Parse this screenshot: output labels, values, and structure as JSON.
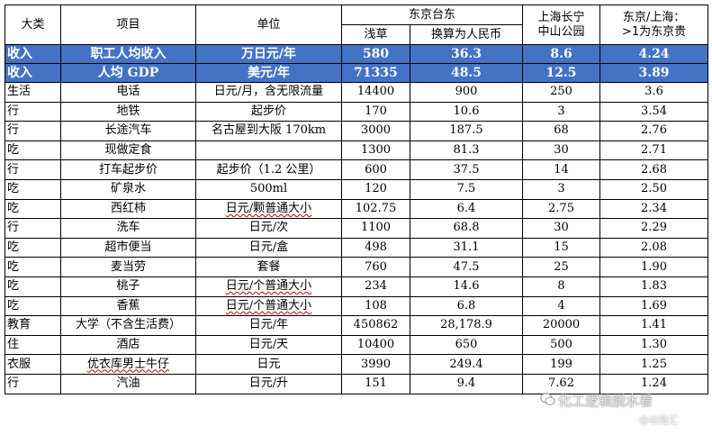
{
  "header": {
    "category": "大类",
    "item": "项目",
    "unit": "单位",
    "tokyo_group": "东京台东",
    "tokyo_asakusa": "浅草",
    "tokyo_rmb": "换算为人民币",
    "shanghai_line1": "上海长宁",
    "shanghai_line2": "中山公园",
    "ratio_line1": "东京/上海：",
    "ratio_line2": ">1为东京贵"
  },
  "income_rows": [
    {
      "cat": "收入",
      "item": "职工人均收入",
      "unit": "万日元/年",
      "tokyo": "580",
      "rmb": "36.3",
      "sh": "8.6",
      "ratio": "4.24"
    },
    {
      "cat": "收入",
      "item": "人均 GDP",
      "unit": "美元/年",
      "tokyo": "71335",
      "rmb": "48.5",
      "sh": "12.5",
      "ratio": "3.89"
    }
  ],
  "rows": [
    {
      "cat": "生活",
      "item": "电话",
      "unit": "日元/月，含无限流量",
      "tokyo": "14400",
      "rmb": "900",
      "sh": "250",
      "ratio": "3.6"
    },
    {
      "cat": "行",
      "item": "地铁",
      "unit": "起步价",
      "tokyo": "170",
      "rmb": "10.6",
      "sh": "3",
      "ratio": "3.54"
    },
    {
      "cat": "行",
      "item": "长途汽车",
      "unit": "名古屋到大阪 170km",
      "tokyo": "3000",
      "rmb": "187.5",
      "sh": "68",
      "ratio": "2.76"
    },
    {
      "cat": "吃",
      "item": "现做定食",
      "unit": "",
      "tokyo": "1300",
      "rmb": "81.3",
      "sh": "30",
      "ratio": "2.71"
    },
    {
      "cat": "行",
      "item": "打车起步价",
      "unit": "起步价（1.2 公里）",
      "tokyo": "600",
      "rmb": "37.5",
      "sh": "14",
      "ratio": "2.68"
    },
    {
      "cat": "吃",
      "item": "矿泉水",
      "unit": "500ml",
      "tokyo": "120",
      "rmb": "7.5",
      "sh": "3",
      "ratio": "2.50"
    },
    {
      "cat": "吃",
      "item": "西红柿",
      "unit": "日元/颗普通大小",
      "tokyo": "102.75",
      "rmb": "6.4",
      "sh": "2.75",
      "ratio": "2.34"
    },
    {
      "cat": "行",
      "item": "洗车",
      "unit": "日元/次",
      "tokyo": "1100",
      "rmb": "68.8",
      "sh": "30",
      "ratio": "2.29"
    },
    {
      "cat": "吃",
      "item": "超市便当",
      "unit": "日元/盒",
      "tokyo": "498",
      "rmb": "31.1",
      "sh": "15",
      "ratio": "2.08"
    },
    {
      "cat": "吃",
      "item": "麦当劳",
      "unit": "套餐",
      "tokyo": "760",
      "rmb": "47.5",
      "sh": "25",
      "ratio": "1.90"
    },
    {
      "cat": "吃",
      "item": "桃子",
      "unit": "日元/个普通大小",
      "tokyo": "234",
      "rmb": "14.6",
      "sh": "8",
      "ratio": "1.83"
    },
    {
      "cat": "吃",
      "item": "香蕉",
      "unit": "日元/个普通大小",
      "tokyo": "108",
      "rmb": "6.8",
      "sh": "4",
      "ratio": "1.69"
    },
    {
      "cat": "教育",
      "item": "大学（不含生活费）",
      "unit": "日元/年",
      "tokyo": "450862",
      "rmb": "28,178.9",
      "sh": "20000",
      "ratio": "1.41"
    },
    {
      "cat": "住",
      "item": "酒店",
      "unit": "日元/天",
      "tokyo": "10400",
      "rmb": "650",
      "sh": "500",
      "ratio": "1.30"
    },
    {
      "cat": "衣服",
      "item": "优衣库男士牛仔",
      "unit": "日元",
      "tokyo": "3990",
      "rmb": "249.4",
      "sh": "199",
      "ratio": "1.25"
    },
    {
      "cat": "行",
      "item": "汽油",
      "unit": "日元/升",
      "tokyo": "151",
      "rmb": "9.4",
      "sh": "7.62",
      "ratio": "1.24"
    }
  ],
  "watermark": {
    "text": "化工逻辑脱水看",
    "sub": "@谷隆汇"
  },
  "colors": {
    "income_bg": "#4472c4",
    "income_text": "#ffffff",
    "grid": "#000000"
  }
}
